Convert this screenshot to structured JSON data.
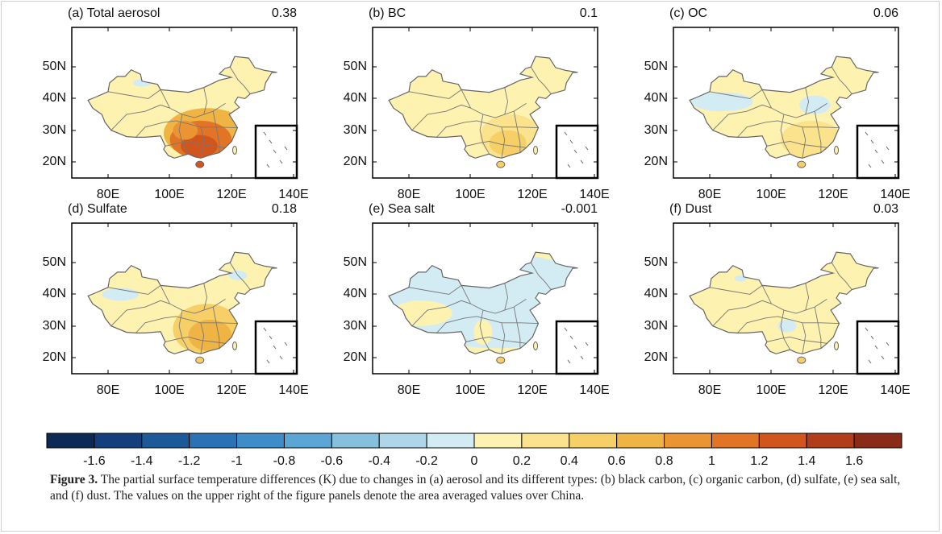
{
  "panels": [
    {
      "title": "(a) Total aerosol",
      "value": 0.38
    },
    {
      "title": "(b) BC",
      "value": 0.1
    },
    {
      "title": "(c) OC",
      "value": 0.06
    },
    {
      "title": "(d) Sulfate",
      "value": 0.18
    },
    {
      "title": "(e) Sea salt",
      "value": -0.001
    },
    {
      "title": "(f) Dust",
      "value": 0.03
    }
  ],
  "lat_labels": [
    "50N",
    "40N",
    "30N",
    "20N"
  ],
  "lon_labels": [
    "80E",
    "100E",
    "120E",
    "140E"
  ],
  "colorbar": {
    "range": [
      -1.8,
      1.8
    ],
    "ticks": [
      -1.6,
      -1.4,
      -1.2,
      -1,
      -0.8,
      -0.6,
      -0.4,
      -0.2,
      0,
      0.2,
      0.4,
      0.6,
      0.8,
      1,
      1.2,
      1.4,
      1.6
    ],
    "colors": [
      "#0b2a55",
      "#143f7c",
      "#1b5998",
      "#2b72b5",
      "#3f8dc8",
      "#5ba6d4",
      "#86c0dd",
      "#aed6e8",
      "#d3ecf4",
      "#fdf2b0",
      "#fbe28c",
      "#f6cf66",
      "#f0b445",
      "#eb9433",
      "#e27426",
      "#d0561d",
      "#b23d1a",
      "#8a2a18"
    ]
  },
  "caption": {
    "label": "Figure 3.",
    "text": "The partial surface temperature differences (K) due to changes in (a) aerosol and its different types: (b) black carbon, (c) organic carbon, (d) sulfate, (e) sea salt, and (f) dust. The values on the upper right of the figure panels denote the area averaged values over China."
  }
}
